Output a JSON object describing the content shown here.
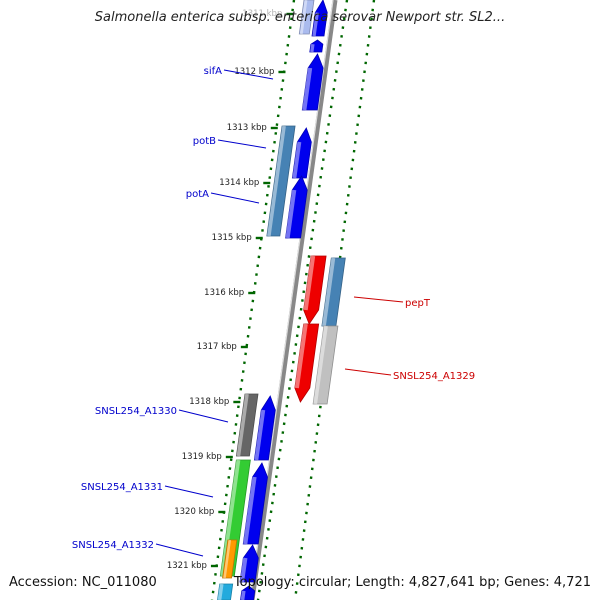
{
  "title": "Salmonella enterica subsp. enterica serovar Newport str. SL2...",
  "accession_text": "Accession: NC_011080",
  "summary_text": "Topology: circular; Length: 4,827,641 bp; Genes: 4,721",
  "colors": {
    "forward_gene": "#0000ee",
    "reverse_gene": "#ee0000",
    "steel_blue": "#4682b4",
    "gray_gene": "#666666",
    "light_gray_gene": "#c0c0c0",
    "green_gene": "#33cc33",
    "orange_gene": "#ff9900",
    "cyan_gene": "#22aadd",
    "forward_label": "#0000cc",
    "reverse_label": "#cc0000",
    "backbone": "#888888",
    "ruler_tick": "#006600"
  },
  "scale_labels": [
    "1311 kbp",
    "1312 kbp",
    "1313 kbp",
    "1314 kbp",
    "1315 kbp",
    "1316 kbp",
    "1317 kbp",
    "1318 kbp",
    "1319 kbp",
    "1320 kbp",
    "1321 kbp"
  ],
  "gene_labels_forward": [
    "sifA",
    "potB",
    "potA",
    "SNSL254_A1330",
    "SNSL254_A1331",
    "SNSL254_A1332"
  ],
  "gene_labels_reverse": [
    "pepT",
    "SNSL254_A1329"
  ]
}
